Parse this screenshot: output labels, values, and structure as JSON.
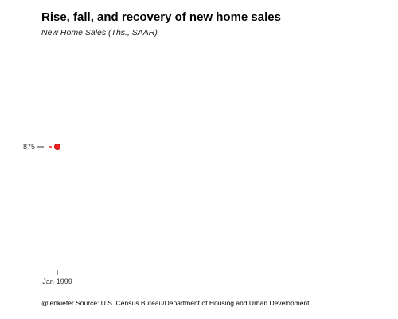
{
  "chart_data": {
    "type": "line",
    "title": "Rise, fall, and recovery of new home sales",
    "subtitle": "New Home Sales (Ths., SAAR)",
    "xlabel": "",
    "ylabel": "",
    "x": [
      "Jan-1999"
    ],
    "series": [
      {
        "values": [
          875
        ],
        "color": "#ee2222"
      }
    ],
    "x_tick_labels": [
      "Jan-1999"
    ],
    "y_tick_labels": [
      "875"
    ],
    "grid": false,
    "caption": "@lenkiefer Source: U.S. Census Bureau/Department of Housing and Urban Development"
  }
}
